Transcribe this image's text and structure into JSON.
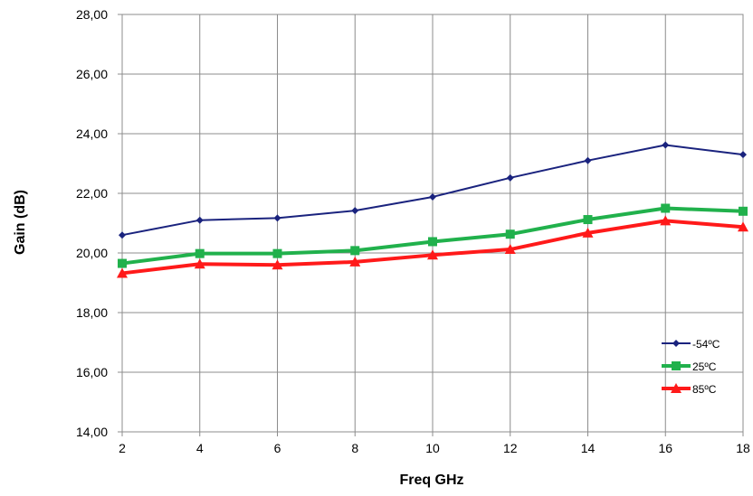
{
  "chart_data": {
    "type": "line",
    "title": "",
    "xlabel": "Freq GHz",
    "ylabel": "Gain (dB)",
    "x": [
      2,
      4,
      6,
      8,
      10,
      12,
      14,
      16,
      18
    ],
    "xlim": [
      2,
      18
    ],
    "ylim": [
      14,
      28
    ],
    "x_ticks": [
      "2",
      "4",
      "6",
      "8",
      "10",
      "12",
      "14",
      "16",
      "18"
    ],
    "y_ticks": [
      "14,00",
      "16,00",
      "18,00",
      "20,00",
      "22,00",
      "24,00",
      "26,00",
      "28,00"
    ],
    "grid": true,
    "legend_position": "bottom-right (inside plot)",
    "series": [
      {
        "name": "-54ºC",
        "color": "#1a237e",
        "marker": "diamond",
        "values": [
          20.6,
          21.1,
          21.17,
          21.42,
          21.88,
          22.52,
          23.1,
          23.62,
          23.3
        ]
      },
      {
        "name": "25ºC",
        "color": "#21b14c",
        "marker": "square",
        "values": [
          19.65,
          19.98,
          19.98,
          20.08,
          20.38,
          20.63,
          21.12,
          21.5,
          21.4
        ]
      },
      {
        "name": "85ºC",
        "color": "#ff1a1a",
        "marker": "triangle",
        "values": [
          19.32,
          19.63,
          19.6,
          19.7,
          19.93,
          20.12,
          20.67,
          21.08,
          20.87
        ]
      }
    ]
  }
}
